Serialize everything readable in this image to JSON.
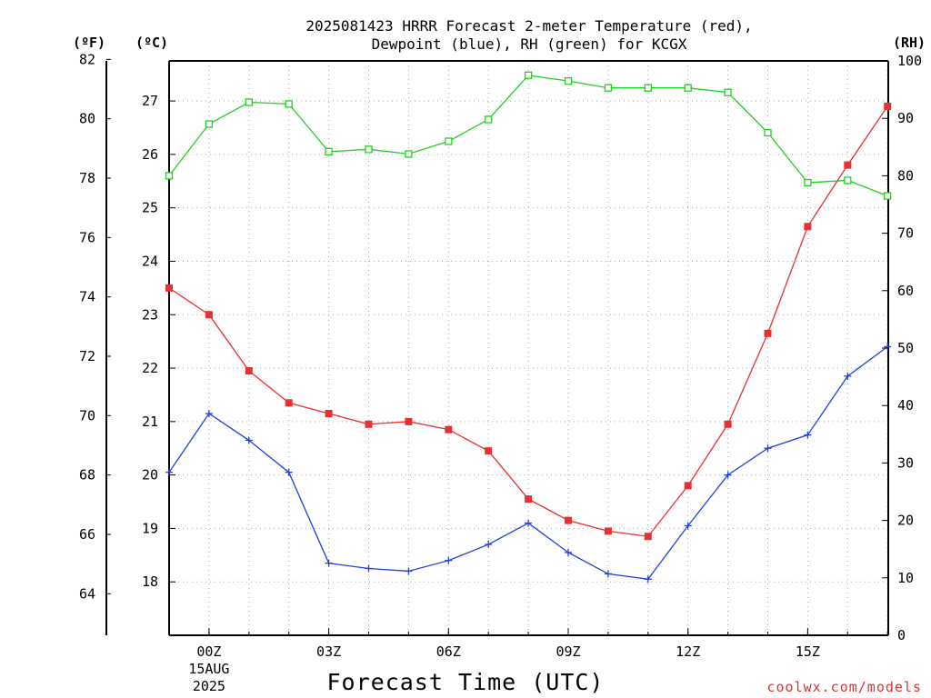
{
  "title": {
    "line1": "2025081423 HRRR Forecast 2-meter Temperature (red),",
    "line2": "Dewpoint (blue), RH (green) for KCGX"
  },
  "units": {
    "fahrenheit": "(ºF)",
    "celsius": "(ºC)",
    "rh": "(RH)"
  },
  "xlabel": "Forecast Time (UTC)",
  "credit": "coolwx.com/models",
  "colors": {
    "temperature": "#e83030",
    "dewpoint": "#2040e0",
    "rh": "#20d020"
  },
  "chart_data": {
    "type": "line",
    "title": "2025081423 HRRR Forecast 2-meter Temperature (red), Dewpoint (blue), RH (green) for KCGX",
    "xlabel": "Forecast Time (UTC)",
    "x": [
      "23Z",
      "00Z",
      "01Z",
      "02Z",
      "03Z",
      "04Z",
      "05Z",
      "06Z",
      "07Z",
      "08Z",
      "09Z",
      "10Z",
      "11Z",
      "12Z",
      "13Z",
      "14Z",
      "15Z",
      "16Z",
      "17Z"
    ],
    "x_ticks": [
      {
        "index": 1,
        "label": "00Z",
        "sub1": "15AUG",
        "sub2": "2025"
      },
      {
        "index": 4,
        "label": "03Z"
      },
      {
        "index": 7,
        "label": "06Z"
      },
      {
        "index": 10,
        "label": "09Z"
      },
      {
        "index": 13,
        "label": "12Z"
      },
      {
        "index": 16,
        "label": "15Z"
      }
    ],
    "series": [
      {
        "name": "Temperature",
        "axis": "celsius",
        "marker": "square",
        "values": [
          23.5,
          23.0,
          21.95,
          21.35,
          21.15,
          20.95,
          21.0,
          20.85,
          20.45,
          19.55,
          19.15,
          18.95,
          18.85,
          19.8,
          20.95,
          22.65,
          24.65,
          25.8,
          26.9
        ]
      },
      {
        "name": "Dewpoint",
        "axis": "celsius",
        "marker": "plus",
        "values": [
          20.05,
          21.15,
          20.65,
          20.05,
          18.35,
          18.25,
          18.2,
          18.4,
          18.7,
          19.1,
          18.55,
          18.15,
          18.05,
          19.05,
          20.0,
          20.5,
          20.75,
          21.85,
          22.4
        ]
      },
      {
        "name": "RH",
        "axis": "rh",
        "marker": "open-square",
        "values": [
          80.0,
          89.0,
          92.8,
          92.5,
          84.2,
          84.6,
          83.8,
          86.0,
          89.8,
          97.5,
          96.5,
          95.3,
          95.3,
          95.3,
          94.5,
          87.5,
          78.8,
          79.2,
          76.5
        ]
      }
    ],
    "axes": {
      "celsius": {
        "ticks": [
          18,
          19,
          20,
          21,
          22,
          23,
          24,
          25,
          26,
          27
        ],
        "range": [
          17.0,
          27.75
        ]
      },
      "fahrenheit": {
        "ticks": [
          64,
          66,
          68,
          70,
          72,
          74,
          76,
          78,
          80,
          82
        ]
      },
      "rh": {
        "ticks": [
          0,
          10,
          20,
          30,
          40,
          50,
          60,
          70,
          80,
          90,
          100
        ],
        "range": [
          0,
          100
        ]
      }
    },
    "grid": true
  }
}
